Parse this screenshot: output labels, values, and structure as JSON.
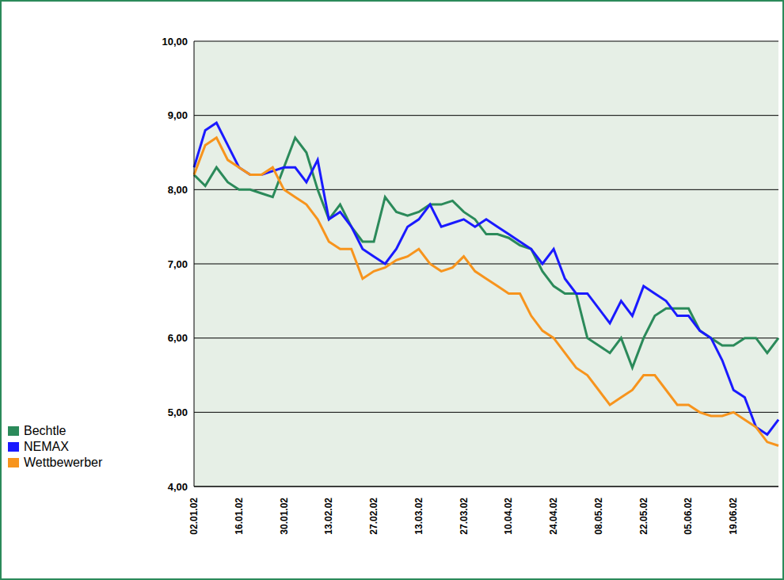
{
  "chart_data": {
    "type": "line",
    "categories": [
      "02.01.02",
      null,
      null,
      null,
      "16.01.02",
      null,
      null,
      null,
      "30.01.02",
      null,
      null,
      null,
      "13.02.02",
      null,
      null,
      null,
      "27.02.02",
      null,
      null,
      null,
      "13.03.02",
      null,
      null,
      null,
      "27.03.02",
      null,
      null,
      null,
      "10.04.02",
      null,
      null,
      null,
      "24.04.02",
      null,
      null,
      null,
      "08.05.02",
      null,
      null,
      null,
      "22.05.02",
      null,
      null,
      null,
      "05.06.02",
      null,
      null,
      null,
      "19.06.02",
      null,
      null,
      null,
      null
    ],
    "series": [
      {
        "name": "Bechtle",
        "color": "#2b8a5a",
        "values": [
          8.2,
          8.05,
          8.3,
          8.1,
          8.0,
          8.0,
          7.95,
          7.9,
          8.3,
          8.7,
          8.5,
          8.0,
          7.6,
          7.8,
          7.5,
          7.3,
          7.3,
          7.9,
          7.7,
          7.65,
          7.7,
          7.8,
          7.8,
          7.85,
          7.7,
          7.6,
          7.4,
          7.4,
          7.35,
          7.25,
          7.2,
          6.9,
          6.7,
          6.6,
          6.6,
          6.0,
          5.9,
          5.8,
          6.0,
          5.6,
          6.0,
          6.3,
          6.4,
          6.4,
          6.4,
          6.1,
          6.0,
          5.9,
          5.9,
          6.0,
          6.0,
          5.8,
          6.0
        ]
      },
      {
        "name": "NEMAX",
        "color": "#1a1aff",
        "values": [
          8.3,
          8.8,
          8.9,
          8.6,
          8.3,
          8.2,
          8.2,
          8.25,
          8.3,
          8.3,
          8.1,
          8.4,
          7.6,
          7.7,
          7.5,
          7.2,
          7.1,
          7.0,
          7.2,
          7.5,
          7.6,
          7.8,
          7.5,
          7.55,
          7.6,
          7.5,
          7.6,
          7.5,
          7.4,
          7.3,
          7.2,
          7.0,
          7.2,
          6.8,
          6.6,
          6.6,
          6.4,
          6.2,
          6.5,
          6.3,
          6.7,
          6.6,
          6.5,
          6.3,
          6.3,
          6.1,
          6.0,
          5.7,
          5.3,
          5.2,
          4.8,
          4.7,
          4.9
        ]
      },
      {
        "name": "Wettbewerber",
        "color": "#f7941d",
        "values": [
          8.2,
          8.6,
          8.7,
          8.4,
          8.3,
          8.2,
          8.2,
          8.3,
          8.0,
          7.9,
          7.8,
          7.6,
          7.3,
          7.2,
          7.2,
          6.8,
          6.9,
          6.95,
          7.05,
          7.1,
          7.2,
          7.0,
          6.9,
          6.95,
          7.1,
          6.9,
          6.8,
          6.7,
          6.6,
          6.6,
          6.3,
          6.1,
          6.0,
          5.8,
          5.6,
          5.5,
          5.3,
          5.1,
          5.2,
          5.3,
          5.5,
          5.5,
          5.3,
          5.1,
          5.1,
          5.0,
          4.95,
          4.95,
          5.0,
          4.9,
          4.8,
          4.6,
          4.55
        ]
      }
    ],
    "ylim": [
      4,
      10
    ],
    "yticks": [
      {
        "value": 4,
        "label": "4,00"
      },
      {
        "value": 5,
        "label": "5,00"
      },
      {
        "value": 6,
        "label": "6,00"
      },
      {
        "value": 7,
        "label": "7,00"
      },
      {
        "value": 8,
        "label": "8,00"
      },
      {
        "value": 9,
        "label": "9,00"
      },
      {
        "value": 10,
        "label": "10,00"
      }
    ],
    "grid": true,
    "legend": "left"
  }
}
